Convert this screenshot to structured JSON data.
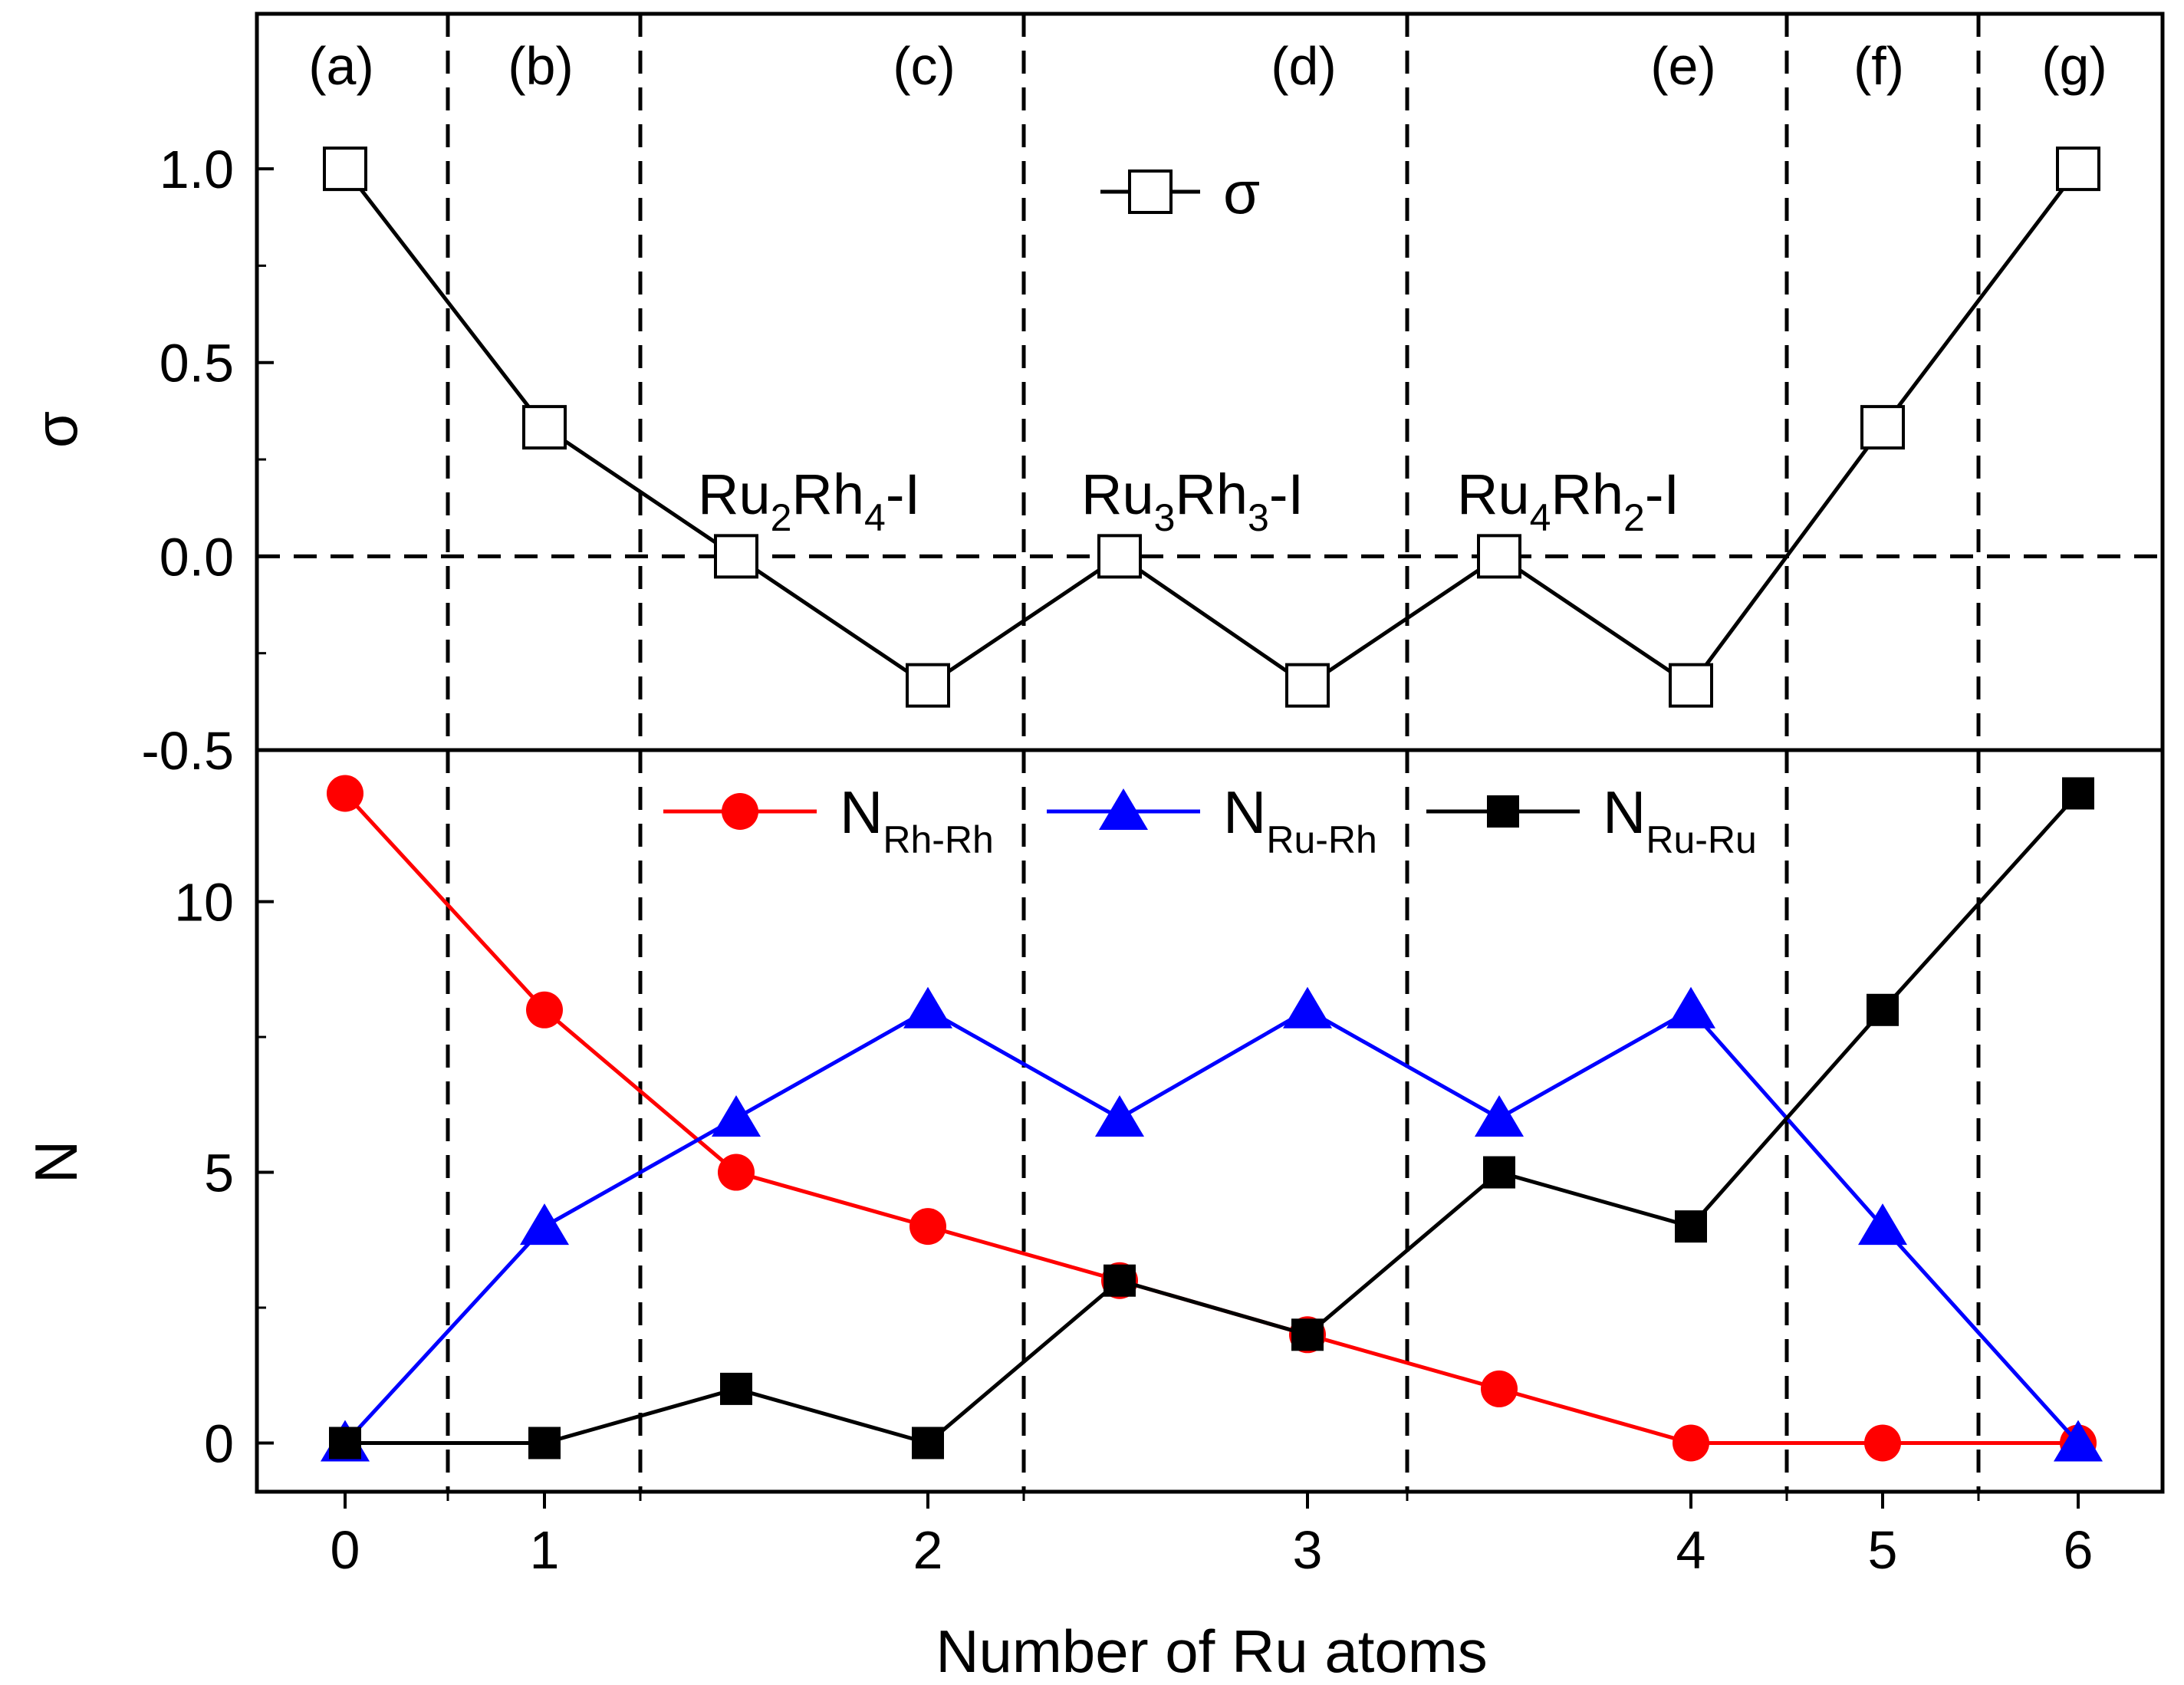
{
  "chart_data": {
    "type": "line",
    "xlabel": "Number of Ru atoms",
    "x_ticks": [
      "0",
      "1",
      "2",
      "3",
      "4",
      "5",
      "6"
    ],
    "x_tick_positions": [
      0,
      1,
      2,
      3,
      4,
      5,
      6
    ],
    "region_labels": [
      "(a)",
      "(b)",
      "(c)",
      "(d)",
      "(e)",
      "(f)",
      "(g)"
    ],
    "region_centers": [
      0,
      1,
      2,
      3,
      4,
      5,
      6
    ],
    "region_boundaries": [
      0.45,
      1.45,
      2.45,
      3.45,
      4.45,
      5.45
    ],
    "structure_labels": [
      {
        "id": "ru2rh4",
        "main1": "Ru",
        "sub1": "2",
        "main2": "Rh",
        "sub2": "4",
        "suffix": "-I",
        "x": 1.55,
        "y": 0.1
      },
      {
        "id": "ru3rh3",
        "main1": "Ru",
        "sub1": "3",
        "main2": "Rh",
        "sub2": "3",
        "suffix": "-I",
        "x": 2.55,
        "y": 0.1
      },
      {
        "id": "ru4rh2",
        "main1": "Ru",
        "sub1": "4",
        "main2": "Rh",
        "sub2": "2",
        "suffix": "-I",
        "x": 3.55,
        "y": 0.1
      }
    ],
    "panels": [
      {
        "id": "sigma",
        "ylabel": "σ",
        "ylim": [
          -0.5,
          1.4
        ],
        "y_ticks": [
          -0.5,
          0.0,
          0.5,
          1.0
        ],
        "y_tick_labels": [
          "-0.5",
          "0.0",
          "0.5",
          "1.0"
        ],
        "reference_line_y": 0.0,
        "legend": [
          {
            "label": "σ",
            "sub": ""
          }
        ],
        "series": [
          {
            "name": "σ",
            "color": "#000000",
            "marker": "open-square",
            "x": [
              0,
              1,
              1.5,
              2,
              2.5,
              3,
              3.5,
              4,
              5,
              6
            ],
            "y": [
              1.0,
              0.333,
              0.0,
              -0.333,
              0.0,
              -0.333,
              0.0,
              -0.333,
              0.333,
              1.0
            ]
          }
        ]
      },
      {
        "id": "N",
        "ylabel": "N",
        "ylim": [
          -0.9,
          12.8
        ],
        "y_ticks": [
          0,
          5,
          10
        ],
        "y_tick_labels": [
          "0",
          "5",
          "10"
        ],
        "legend": [
          {
            "label": "N",
            "sub": "Rh-Rh"
          },
          {
            "label": "N",
            "sub": "Ru-Rh"
          },
          {
            "label": "N",
            "sub": "Ru-Ru"
          }
        ],
        "series": [
          {
            "name": "N_Rh-Rh",
            "color": "#ff0000",
            "marker": "circle",
            "x": [
              0,
              1,
              1.5,
              2,
              2.5,
              3,
              3.5,
              4,
              5,
              6
            ],
            "y": [
              12,
              8,
              5,
              4,
              3,
              2,
              1,
              0,
              0,
              0
            ]
          },
          {
            "name": "N_Ru-Rh",
            "color": "#0000ff",
            "marker": "triangle",
            "x": [
              0,
              1,
              1.5,
              2,
              2.5,
              3,
              3.5,
              4,
              5,
              6
            ],
            "y": [
              0,
              4,
              6,
              8,
              6,
              8,
              6,
              8,
              4,
              0
            ]
          },
          {
            "name": "N_Ru-Ru",
            "color": "#000000",
            "marker": "square",
            "x": [
              0,
              1,
              1.5,
              2,
              2.5,
              3,
              3.5,
              4,
              5,
              6
            ],
            "y": [
              0,
              0,
              1,
              0,
              3,
              2,
              5,
              4,
              8,
              12
            ]
          }
        ]
      }
    ]
  }
}
